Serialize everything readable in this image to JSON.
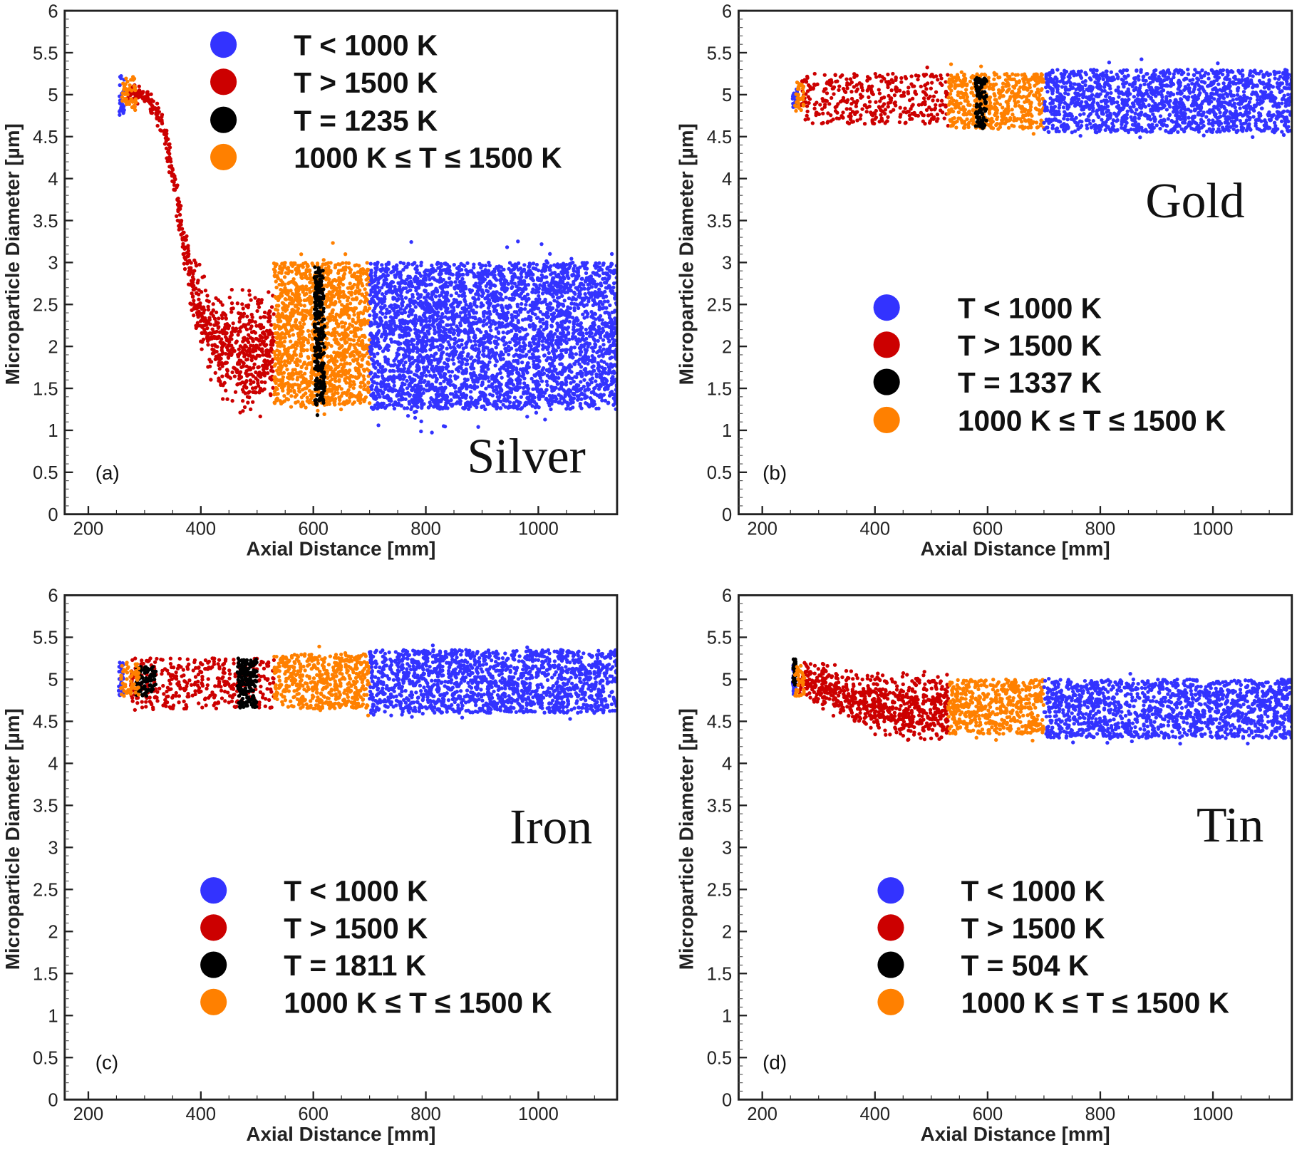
{
  "chart_data": [
    {
      "type": "scatter",
      "panel_label": "(a)",
      "material": "Silver",
      "xlabel": "Axial Distance [mm]",
      "ylabel": "Microparticle Diameter [µm]",
      "xlim": [
        158,
        1140
      ],
      "ylim": [
        0,
        6
      ],
      "xticks": [
        200,
        400,
        600,
        800,
        1000
      ],
      "yticks": [
        0,
        0.5,
        1,
        1.5,
        2,
        2.5,
        3,
        3.5,
        4,
        4.5,
        5,
        5.5,
        6
      ],
      "grid": false,
      "legend_placement": "top",
      "legend": [
        {
          "label": "T < 1000 K",
          "cat": "cold"
        },
        {
          "label": "T > 1500 K",
          "cat": "hot"
        },
        {
          "label": "T = 1235 K",
          "cat": "melt"
        },
        {
          "label": "1000 K ≤ T ≤ 1500 K",
          "cat": "mid"
        }
      ],
      "clusters": [
        {
          "cat": "hot",
          "path": [
            [
              270,
              5.0
            ],
            [
              300,
              5.0
            ],
            [
              330,
              4.7
            ],
            [
              350,
              4.1
            ],
            [
              365,
              3.4
            ],
            [
              385,
              2.7
            ],
            [
              420,
              2.1
            ],
            [
              470,
              1.9
            ],
            [
              530,
              2.0
            ]
          ],
          "spread": [
            0.12,
            0.12,
            0.2,
            0.25,
            0.3,
            0.45,
            0.6,
            0.8,
            0.8
          ]
        },
        {
          "cat": "mid",
          "x": [
            530,
            700
          ],
          "y": [
            1.3,
            3.0
          ]
        },
        {
          "cat": "cold",
          "x": [
            700,
            1140
          ],
          "y": [
            1.25,
            3.0
          ]
        },
        {
          "cat": "melt",
          "x": [
            602,
            620
          ],
          "y": [
            1.3,
            2.95
          ]
        },
        {
          "cat": "cold",
          "x": [
            255,
            265
          ],
          "y": [
            4.75,
            5.25
          ]
        },
        {
          "cat": "mid",
          "x": [
            258,
            285
          ],
          "y": [
            4.8,
            5.2
          ]
        }
      ]
    },
    {
      "type": "scatter",
      "panel_label": "(b)",
      "material": "Gold",
      "xlabel": "Axial Distance [mm]",
      "ylabel": "Microparticle Diameter [µm]",
      "xlim": [
        158,
        1140
      ],
      "ylim": [
        0,
        6
      ],
      "xticks": [
        200,
        400,
        600,
        800,
        1000
      ],
      "yticks": [
        0,
        0.5,
        1,
        1.5,
        2,
        2.5,
        3,
        3.5,
        4,
        4.5,
        5,
        5.5,
        6
      ],
      "grid": false,
      "legend_placement": "center-right",
      "legend": [
        {
          "label": "T < 1000 K",
          "cat": "cold"
        },
        {
          "label": "T > 1500 K",
          "cat": "hot"
        },
        {
          "label": "T = 1337 K",
          "cat": "melt"
        },
        {
          "label": "1000 K ≤ T ≤ 1500 K",
          "cat": "mid"
        }
      ],
      "clusters": [
        {
          "cat": "hot",
          "x": [
            270,
            530
          ],
          "y": [
            4.65,
            5.25
          ]
        },
        {
          "cat": "mid",
          "x": [
            530,
            700
          ],
          "y": [
            4.6,
            5.25
          ]
        },
        {
          "cat": "cold",
          "x": [
            700,
            1140
          ],
          "y": [
            4.55,
            5.3
          ]
        },
        {
          "cat": "melt",
          "x": [
            578,
            598
          ],
          "y": [
            4.6,
            5.2
          ]
        },
        {
          "cat": "cold",
          "x": [
            254,
            262
          ],
          "y": [
            4.85,
            5.1
          ]
        },
        {
          "cat": "mid",
          "x": [
            258,
            275
          ],
          "y": [
            4.8,
            5.15
          ]
        }
      ]
    },
    {
      "type": "scatter",
      "panel_label": "(c)",
      "material": "Iron",
      "xlabel": "Axial Distance [mm]",
      "ylabel": "Microparticle Diameter [µm]",
      "xlim": [
        158,
        1140
      ],
      "ylim": [
        0,
        6
      ],
      "xticks": [
        200,
        400,
        600,
        800,
        1000
      ],
      "yticks": [
        0,
        0.5,
        1,
        1.5,
        2,
        2.5,
        3,
        3.5,
        4,
        4.5,
        5,
        5.5,
        6
      ],
      "grid": false,
      "legend_placement": "bottom",
      "legend": [
        {
          "label": "T < 1000 K",
          "cat": "cold"
        },
        {
          "label": "T > 1500 K",
          "cat": "hot"
        },
        {
          "label": "T = 1811 K",
          "cat": "melt"
        },
        {
          "label": "1000 K ≤ T ≤ 1500 K",
          "cat": "mid"
        }
      ],
      "clusters": [
        {
          "cat": "hot",
          "x": [
            275,
            530
          ],
          "y": [
            4.65,
            5.25
          ]
        },
        {
          "cat": "mid",
          "x": [
            530,
            700
          ],
          "y": [
            4.65,
            5.3
          ]
        },
        {
          "cat": "cold",
          "x": [
            700,
            1140
          ],
          "y": [
            4.6,
            5.35
          ]
        },
        {
          "cat": "melt",
          "x": [
            465,
            500
          ],
          "y": [
            4.65,
            5.25
          ]
        },
        {
          "cat": "melt",
          "x": [
            285,
            320
          ],
          "y": [
            4.8,
            5.15
          ]
        },
        {
          "cat": "cold",
          "x": [
            254,
            262
          ],
          "y": [
            4.8,
            5.2
          ]
        },
        {
          "cat": "mid",
          "x": [
            258,
            290
          ],
          "y": [
            4.8,
            5.2
          ]
        }
      ]
    },
    {
      "type": "scatter",
      "panel_label": "(d)",
      "material": "Tin",
      "xlabel": "Axial Distance [mm]",
      "ylabel": "Microparticle Diameter [µm]",
      "xlim": [
        158,
        1140
      ],
      "ylim": [
        0,
        6
      ],
      "xticks": [
        200,
        400,
        600,
        800,
        1000
      ],
      "yticks": [
        0,
        0.5,
        1,
        1.5,
        2,
        2.5,
        3,
        3.5,
        4,
        4.5,
        5,
        5.5,
        6
      ],
      "grid": false,
      "legend_placement": "bottom",
      "legend": [
        {
          "label": "T < 1000 K",
          "cat": "cold"
        },
        {
          "label": "T > 1500 K",
          "cat": "hot"
        },
        {
          "label": "T = 504 K",
          "cat": "melt"
        },
        {
          "label": "1000 K ≤ T ≤ 1500 K",
          "cat": "mid"
        }
      ],
      "clusters": [
        {
          "cat": "hot",
          "path": [
            [
              265,
              5.0
            ],
            [
              300,
              4.95
            ],
            [
              350,
              4.8
            ],
            [
              400,
              4.7
            ],
            [
              460,
              4.65
            ],
            [
              530,
              4.65
            ]
          ],
          "spread": [
            0.2,
            0.3,
            0.35,
            0.4,
            0.45,
            0.45
          ]
        },
        {
          "cat": "mid",
          "x": [
            530,
            700
          ],
          "y": [
            4.35,
            5.0
          ]
        },
        {
          "cat": "cold",
          "x": [
            700,
            1140
          ],
          "y": [
            4.3,
            5.0
          ]
        },
        {
          "cat": "cold",
          "x": [
            254,
            260
          ],
          "y": [
            4.8,
            5.2
          ]
        },
        {
          "cat": "melt",
          "x": [
            255,
            260
          ],
          "y": [
            4.9,
            5.25
          ]
        },
        {
          "cat": "mid",
          "x": [
            258,
            275
          ],
          "y": [
            4.8,
            5.2
          ]
        }
      ]
    }
  ],
  "colors": {
    "cold": "#3333ff",
    "hot": "#cc0000",
    "melt": "#000000",
    "mid": "#ff8000"
  }
}
